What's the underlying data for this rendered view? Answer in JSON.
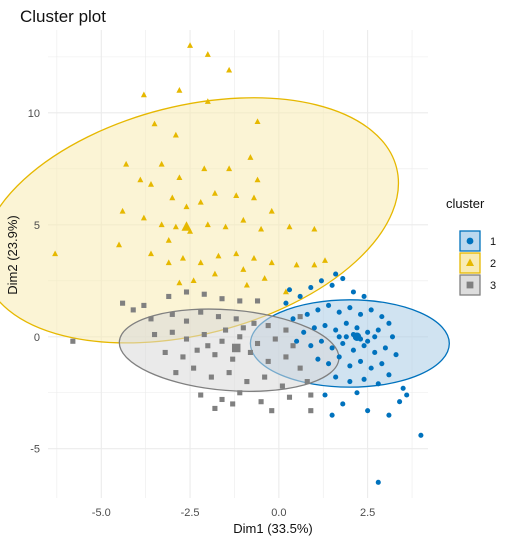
{
  "chart_data": {
    "type": "scatter",
    "title": "Cluster plot",
    "xlabel": "Dim1 (33.5%)",
    "ylabel": "Dim2 (23.9%)",
    "xlim": [
      -6.5,
      4.2
    ],
    "ylim": [
      -7.2,
      13.7
    ],
    "x_ticks": [
      -5.0,
      -2.5,
      0.0,
      2.5
    ],
    "x_tick_labels": [
      "-5.0",
      "-2.5",
      "0.0",
      "2.5"
    ],
    "y_ticks": [
      -5,
      0,
      5,
      10
    ],
    "y_tick_labels": [
      "-5",
      "0",
      "5",
      "10"
    ],
    "grid": true,
    "legend": {
      "title": "cluster",
      "placement": "right",
      "entries": [
        {
          "label": "1",
          "color": "#0072BD",
          "fill": "#BCD8EE",
          "marker": "circle"
        },
        {
          "label": "2",
          "color": "#E6B800",
          "fill": "#F8EBB3",
          "marker": "triangle"
        },
        {
          "label": "3",
          "color": "#808080",
          "fill": "#DDDDDD",
          "marker": "square"
        }
      ]
    },
    "clusters": [
      {
        "name": "1",
        "color": "#0072BD",
        "fill": "#A9CCE6",
        "marker": "circle",
        "centroid": [
          2.2,
          0.0
        ],
        "ellipse": {
          "cx": 2.0,
          "cy": -0.3,
          "rx": 2.8,
          "ry": 1.95
        },
        "points": [
          [
            0.2,
            1.5
          ],
          [
            0.6,
            1.8
          ],
          [
            0.9,
            2.2
          ],
          [
            1.2,
            2.5
          ],
          [
            1.5,
            2.3
          ],
          [
            1.8,
            2.6
          ],
          [
            2.1,
            2.0
          ],
          [
            2.4,
            1.8
          ],
          [
            0.4,
            0.8
          ],
          [
            0.8,
            1.0
          ],
          [
            1.1,
            1.2
          ],
          [
            1.4,
            1.4
          ],
          [
            1.7,
            1.1
          ],
          [
            2.0,
            1.3
          ],
          [
            2.3,
            1.0
          ],
          [
            2.6,
            1.2
          ],
          [
            2.9,
            0.9
          ],
          [
            3.1,
            0.6
          ],
          [
            0.7,
            0.2
          ],
          [
            1.0,
            0.4
          ],
          [
            1.3,
            0.5
          ],
          [
            1.6,
            0.3
          ],
          [
            1.9,
            0.6
          ],
          [
            2.2,
            0.4
          ],
          [
            2.5,
            0.2
          ],
          [
            2.8,
            0.3
          ],
          [
            3.2,
            0.0
          ],
          [
            0.9,
            -0.4
          ],
          [
            1.2,
            -0.2
          ],
          [
            1.5,
            -0.5
          ],
          [
            1.8,
            -0.3
          ],
          [
            2.1,
            -0.6
          ],
          [
            2.4,
            -0.4
          ],
          [
            2.7,
            -0.7
          ],
          [
            3.0,
            -0.5
          ],
          [
            3.3,
            -0.8
          ],
          [
            1.1,
            -1.0
          ],
          [
            1.4,
            -1.2
          ],
          [
            1.7,
            -0.9
          ],
          [
            2.0,
            -1.3
          ],
          [
            2.3,
            -1.1
          ],
          [
            2.6,
            -1.4
          ],
          [
            2.9,
            -1.2
          ],
          [
            1.6,
            -1.8
          ],
          [
            2.0,
            -2.0
          ],
          [
            2.4,
            -1.9
          ],
          [
            2.8,
            -2.1
          ],
          [
            3.1,
            -1.7
          ],
          [
            1.3,
            -2.6
          ],
          [
            1.8,
            -3.0
          ],
          [
            2.2,
            -2.5
          ],
          [
            3.5,
            -2.3
          ],
          [
            3.6,
            -2.6
          ],
          [
            3.4,
            -2.9
          ],
          [
            2.5,
            -3.3
          ],
          [
            1.5,
            -3.5
          ],
          [
            1.9,
            0.0
          ],
          [
            2.1,
            0.1
          ],
          [
            2.3,
            -0.1
          ],
          [
            1.7,
            0.0
          ],
          [
            2.5,
            -0.2
          ],
          [
            2.7,
            0.0
          ],
          [
            1.6,
            2.8
          ],
          [
            0.3,
            2.1
          ],
          [
            0.5,
            -0.2
          ],
          [
            4.0,
            -4.4
          ],
          [
            2.8,
            -6.5
          ],
          [
            3.1,
            -3.5
          ]
        ]
      },
      {
        "name": "2",
        "color": "#E6B800",
        "fill": "#F8EBB3",
        "marker": "triangle",
        "centroid": [
          -2.6,
          4.9
        ],
        "ellipse": {
          "cx": -2.5,
          "cy": 5.2,
          "rx": 6.0,
          "ry": 5.1,
          "rotate": 0.25
        },
        "points": [
          [
            -2.5,
            13.0
          ],
          [
            -2.0,
            12.6
          ],
          [
            -1.4,
            11.9
          ],
          [
            -3.8,
            10.8
          ],
          [
            -2.8,
            11.0
          ],
          [
            -2.0,
            10.5
          ],
          [
            -3.5,
            9.5
          ],
          [
            -2.9,
            9.0
          ],
          [
            -4.3,
            7.7
          ],
          [
            -3.9,
            7.0
          ],
          [
            -3.3,
            7.7
          ],
          [
            -2.8,
            7.1
          ],
          [
            -2.1,
            7.5
          ],
          [
            -1.4,
            7.5
          ],
          [
            -0.8,
            8.0
          ],
          [
            -0.6,
            7.0
          ],
          [
            -3.6,
            6.8
          ],
          [
            -3.0,
            6.2
          ],
          [
            -2.6,
            5.8
          ],
          [
            -2.2,
            6.0
          ],
          [
            -1.8,
            6.4
          ],
          [
            -1.2,
            6.3
          ],
          [
            -0.7,
            6.2
          ],
          [
            -0.2,
            5.6
          ],
          [
            -4.4,
            5.6
          ],
          [
            -3.8,
            5.3
          ],
          [
            -3.3,
            5.0
          ],
          [
            -2.9,
            4.9
          ],
          [
            -2.5,
            4.7
          ],
          [
            -2.0,
            5.0
          ],
          [
            -1.5,
            4.9
          ],
          [
            -1.0,
            5.2
          ],
          [
            -0.5,
            4.8
          ],
          [
            0.3,
            4.9
          ],
          [
            1.0,
            4.8
          ],
          [
            -4.5,
            4.1
          ],
          [
            -3.6,
            3.7
          ],
          [
            -3.1,
            3.3
          ],
          [
            -2.7,
            3.5
          ],
          [
            -2.2,
            3.3
          ],
          [
            -1.7,
            3.6
          ],
          [
            -1.2,
            3.7
          ],
          [
            -0.7,
            3.5
          ],
          [
            -0.2,
            3.3
          ],
          [
            0.5,
            3.2
          ],
          [
            1.0,
            3.2
          ],
          [
            1.3,
            3.4
          ],
          [
            -2.4,
            2.5
          ],
          [
            -1.8,
            2.8
          ],
          [
            -1.0,
            3.0
          ],
          [
            -0.4,
            2.6
          ],
          [
            0.2,
            2.0
          ],
          [
            -2.8,
            2.4
          ],
          [
            -0.9,
            2.3
          ],
          [
            -6.3,
            3.7
          ],
          [
            -0.6,
            9.6
          ],
          [
            -3.1,
            4.3
          ]
        ]
      },
      {
        "name": "3",
        "color": "#808080",
        "fill": "#D9D9D9",
        "marker": "square",
        "centroid": [
          -1.2,
          -0.5
        ],
        "ellipse": {
          "cx": -1.4,
          "cy": -0.6,
          "rx": 3.1,
          "ry": 1.8,
          "rotate": -0.08
        },
        "points": [
          [
            -4.4,
            1.5
          ],
          [
            -3.8,
            1.4
          ],
          [
            -3.1,
            1.8
          ],
          [
            -2.6,
            2.0
          ],
          [
            -2.1,
            1.9
          ],
          [
            -1.6,
            1.7
          ],
          [
            -1.1,
            1.6
          ],
          [
            -0.6,
            1.6
          ],
          [
            -4.1,
            1.2
          ],
          [
            -3.6,
            0.8
          ],
          [
            -3.0,
            1.0
          ],
          [
            -2.6,
            0.7
          ],
          [
            -2.2,
            1.1
          ],
          [
            -1.7,
            0.9
          ],
          [
            -1.2,
            0.8
          ],
          [
            -0.7,
            0.6
          ],
          [
            -0.3,
            0.5
          ],
          [
            0.2,
            0.3
          ],
          [
            -3.5,
            0.1
          ],
          [
            -3.0,
            0.2
          ],
          [
            -2.6,
            -0.1
          ],
          [
            -2.1,
            0.1
          ],
          [
            -1.6,
            -0.2
          ],
          [
            -1.1,
            0.0
          ],
          [
            -0.6,
            -0.3
          ],
          [
            -0.1,
            -0.1
          ],
          [
            0.4,
            -0.4
          ],
          [
            -3.2,
            -0.7
          ],
          [
            -2.7,
            -0.9
          ],
          [
            -2.3,
            -0.6
          ],
          [
            -1.8,
            -0.8
          ],
          [
            -1.3,
            -1.0
          ],
          [
            -0.8,
            -0.7
          ],
          [
            -0.3,
            -1.1
          ],
          [
            0.2,
            -0.9
          ],
          [
            0.6,
            -1.4
          ],
          [
            -2.9,
            -1.6
          ],
          [
            -2.4,
            -1.4
          ],
          [
            -1.9,
            -1.8
          ],
          [
            -1.4,
            -1.6
          ],
          [
            -0.9,
            -2.0
          ],
          [
            -0.4,
            -1.8
          ],
          [
            0.1,
            -2.2
          ],
          [
            0.8,
            -2.0
          ],
          [
            -2.2,
            -2.6
          ],
          [
            -1.6,
            -2.8
          ],
          [
            -1.1,
            -2.5
          ],
          [
            -0.5,
            -2.9
          ],
          [
            0.3,
            -2.7
          ],
          [
            0.9,
            -2.6
          ],
          [
            -1.8,
            -3.2
          ],
          [
            -1.3,
            -3.0
          ],
          [
            -0.2,
            -3.3
          ],
          [
            -5.8,
            -0.2
          ],
          [
            -1.0,
            0.4
          ],
          [
            -1.5,
            0.3
          ],
          [
            -2.0,
            -0.4
          ],
          [
            -1.2,
            -0.5
          ],
          [
            0.6,
            0.9
          ],
          [
            0.9,
            -3.3
          ]
        ]
      }
    ]
  }
}
